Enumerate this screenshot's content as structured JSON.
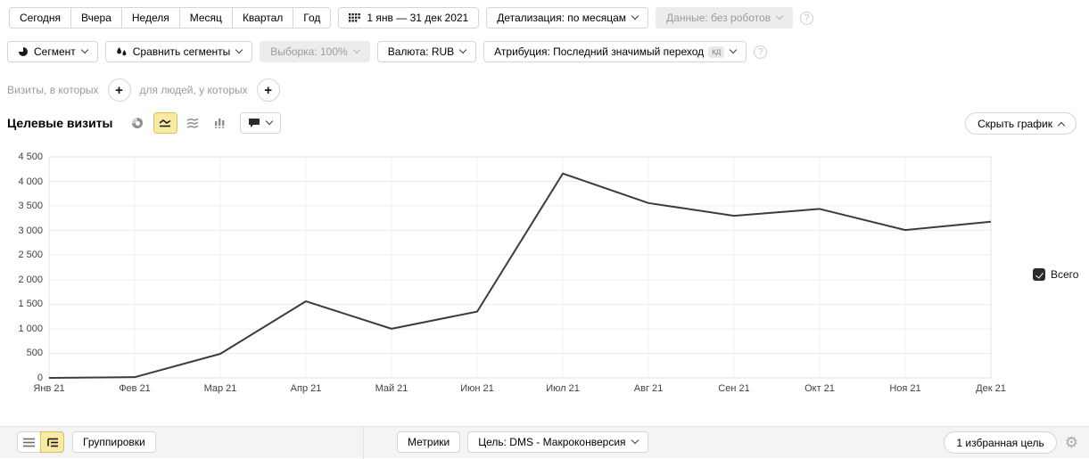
{
  "toolbar_row1": {
    "period_buttons": [
      "Сегодня",
      "Вчера",
      "Неделя",
      "Месяц",
      "Квартал",
      "Год"
    ],
    "date_range_label": "1 янв — 31 дек 2021",
    "detalization_label": "Детализация: по месяцам",
    "data_label": "Данные: без роботов"
  },
  "toolbar_row2": {
    "segment_label": "Сегмент",
    "compare_label": "Сравнить сегменты",
    "sampling_label": "Выборка: 100%",
    "currency_label": "Валюта: RUB",
    "attribution_label": "Атрибуция: Последний значимый переход",
    "attribution_badge": "кд"
  },
  "filter_row": {
    "visits_label": "Визиты, в которых",
    "people_label": "для людей, у которых"
  },
  "chart_header": {
    "title": "Целевые визиты",
    "hide_chart_label": "Скрыть график"
  },
  "legend": {
    "label": "Всего",
    "checked": true
  },
  "chart_data": {
    "type": "line",
    "title": "Целевые визиты",
    "categories": [
      "Янв 21",
      "Фев 21",
      "Мар 21",
      "Апр 21",
      "Май 21",
      "Июн 21",
      "Июл 21",
      "Авг 21",
      "Сен 21",
      "Окт 21",
      "Ноя 21",
      "Дек 21"
    ],
    "series": [
      {
        "name": "Всего",
        "values": [
          0,
          15,
          490,
          1560,
          1000,
          1350,
          4160,
          3560,
          3300,
          3440,
          3010,
          3180
        ]
      }
    ],
    "ylim": [
      0,
      4500
    ],
    "ytick_step": 500,
    "ytick_labels": [
      "0",
      "500",
      "1 000",
      "1 500",
      "2 000",
      "2 500",
      "3 000",
      "3 500",
      "4 000",
      "4 500"
    ],
    "grid": true,
    "legend_position": "right",
    "line_color": "#3c3c3c"
  },
  "bottom_bar": {
    "groupings_label": "Группировки",
    "metrics_label": "Метрики",
    "goal_label": "Цель: DMS - Макроконверсия",
    "favorite_goal_label": "1 избранная цель"
  },
  "icons": {
    "gear": "⚙",
    "plus": "+",
    "help": "?"
  },
  "colors": {
    "accent_yellow_bg": "#f8e9a4",
    "accent_yellow_border": "#dfc056",
    "chart_line": "#3c3c3c",
    "disabled_bg": "#ececec",
    "disabled_text": "#9b9b9b"
  }
}
